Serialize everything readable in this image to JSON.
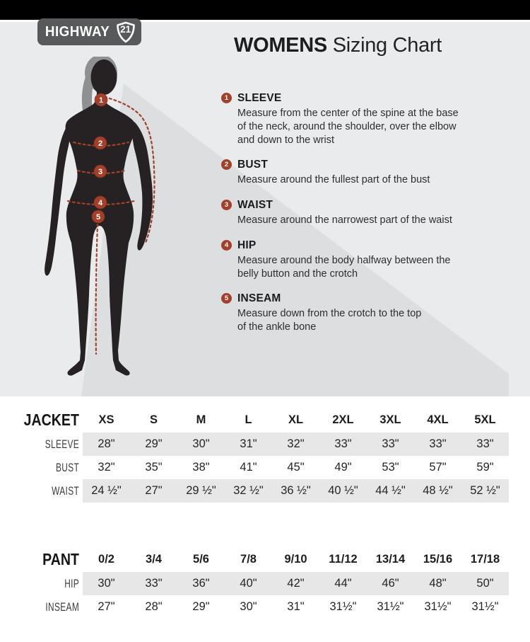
{
  "brand": {
    "word": "HIGHWAY",
    "num": "21"
  },
  "header": {
    "title_bold": "WOMENS",
    "title_rest": "Sizing Chart"
  },
  "measurements": [
    {
      "num": "1",
      "label": "SLEEVE",
      "desc": "Measure from the center of the spine at the base\nof the neck, around the shoulder, over the elbow\nand down to the wrist"
    },
    {
      "num": "2",
      "label": "BUST",
      "desc": "Measure around the fullest part of the bust"
    },
    {
      "num": "3",
      "label": "WAIST",
      "desc": "Measure around the narrowest part of the waist"
    },
    {
      "num": "4",
      "label": "HIP",
      "desc": "Measure around the body halfway between the\nbelly button and the crotch"
    },
    {
      "num": "5",
      "label": "INSEAM",
      "desc": "Measure down from the crotch to the top\nof the ankle bone"
    }
  ],
  "jacket_table": {
    "title": "JACKET",
    "columns": [
      "XS",
      "S",
      "M",
      "L",
      "XL",
      "2XL",
      "3XL",
      "4XL",
      "5XL"
    ],
    "rows": [
      {
        "label": "SLEEVE",
        "shaded": true,
        "values": [
          "28\"",
          "29\"",
          "30\"",
          "31\"",
          "32\"",
          "33\"",
          "33\"",
          "33\"",
          "33\""
        ]
      },
      {
        "label": "BUST",
        "shaded": false,
        "values": [
          "32\"",
          "35\"",
          "38\"",
          "41\"",
          "45\"",
          "49\"",
          "53\"",
          "57\"",
          "59\""
        ]
      },
      {
        "label": "WAIST",
        "shaded": true,
        "values": [
          "24 ½\"",
          "27\"",
          "29 ½\"",
          "32 ½\"",
          "36 ½\"",
          "40 ½\"",
          "44 ½\"",
          "48 ½\"",
          "52 ½\""
        ]
      }
    ]
  },
  "pant_table": {
    "title": "PANT",
    "columns": [
      "0/2",
      "3/4",
      "5/6",
      "7/8",
      "9/10",
      "11/12",
      "13/14",
      "15/16",
      "17/18"
    ],
    "rows": [
      {
        "label": "HIP",
        "shaded": true,
        "values": [
          "30\"",
          "33\"",
          "36\"",
          "40\"",
          "42\"",
          "44\"",
          "46\"",
          "48\"",
          "50\""
        ]
      },
      {
        "label": "INSEAM",
        "shaded": false,
        "values": [
          "27\"",
          "28\"",
          "29\"",
          "30\"",
          "31\"",
          "31½\"",
          "31½\"",
          "31½\"",
          "31½\""
        ]
      }
    ]
  },
  "colors": {
    "accent": "#a3402a",
    "silhouette": "#262223",
    "hair": "#8e9092",
    "topbar": "#000000",
    "hero_bg": "#e9ebed",
    "shadow": "#dcdee0",
    "logo_bg": "#58595b",
    "band": "#e7e7e7",
    "text": "#231f20"
  }
}
